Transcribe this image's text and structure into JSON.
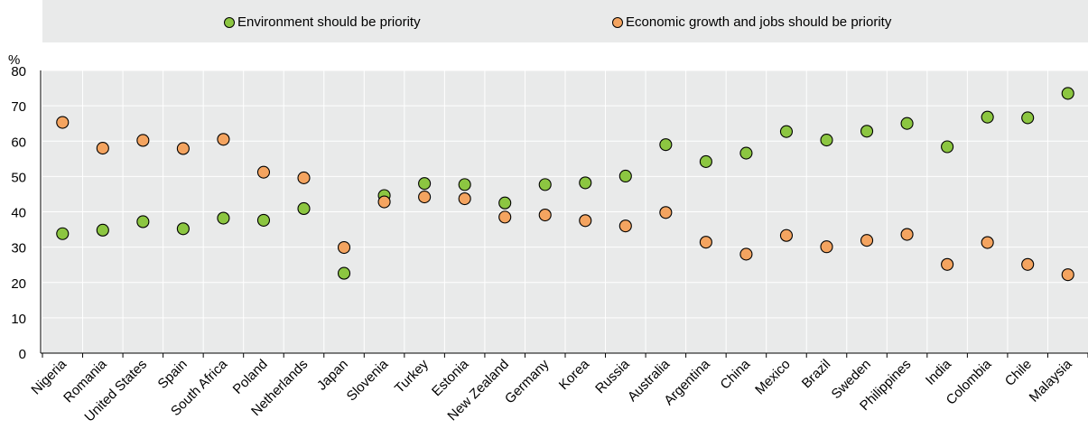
{
  "chart_data": {
    "type": "scatter",
    "y_unit": "%",
    "ylim": [
      0,
      80
    ],
    "yticks": [
      0,
      10,
      20,
      30,
      40,
      50,
      60,
      70,
      80
    ],
    "grid": true,
    "legend_position": "top",
    "categories": [
      "Nigeria",
      "Romania",
      "United States",
      "Spain",
      "South Africa",
      "Poland",
      "Netherlands",
      "Japan",
      "Slovenia",
      "Turkey",
      "Estonia",
      "New Zealand",
      "Germany",
      "Korea",
      "Russia",
      "Australia",
      "Argentina",
      "China",
      "Mexico",
      "Brazil",
      "Sweden",
      "Philippines",
      "India",
      "Colombia",
      "Chile",
      "Malaysia"
    ],
    "series": [
      {
        "name": "Environment should be priority",
        "color": "#8cc641",
        "values": [
          33.8,
          34.8,
          37.2,
          35.2,
          38.2,
          37.6,
          40.9,
          22.6,
          44.6,
          48.0,
          47.7,
          42.5,
          47.7,
          48.2,
          50.1,
          59.0,
          54.2,
          56.6,
          62.7,
          60.3,
          62.8,
          65.0,
          58.4,
          66.8,
          66.6,
          73.5
        ]
      },
      {
        "name": "Economic growth and jobs should be priority",
        "color": "#f4a460",
        "values": [
          65.3,
          58.0,
          60.2,
          57.9,
          60.5,
          51.2,
          49.6,
          29.9,
          42.8,
          44.2,
          43.7,
          38.5,
          39.1,
          37.5,
          36.0,
          39.8,
          31.4,
          28.0,
          33.3,
          30.1,
          31.9,
          33.6,
          25.1,
          31.3,
          25.1,
          22.2
        ]
      }
    ]
  }
}
